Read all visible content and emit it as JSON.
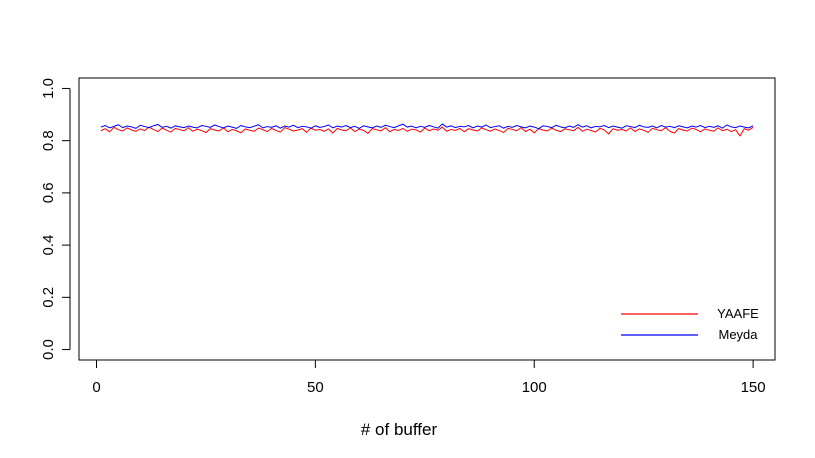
{
  "chart_data": {
    "type": "line",
    "title": "",
    "xlabel": "# of buffer",
    "ylabel": "",
    "xlim": [
      -4,
      155
    ],
    "ylim": [
      -0.04,
      1.04
    ],
    "x_ticks": [
      0,
      50,
      100,
      150
    ],
    "x_tick_labels": [
      "0",
      "50",
      "100",
      "150"
    ],
    "y_ticks": [
      0.0,
      0.2,
      0.4,
      0.6,
      0.8,
      1.0
    ],
    "y_tick_labels": [
      "0.0",
      "0.2",
      "0.4",
      "0.6",
      "0.8",
      "1.0"
    ],
    "grid": false,
    "legend_position": "bottom-right",
    "x": [
      1,
      2,
      3,
      4,
      5,
      6,
      7,
      8,
      9,
      10,
      11,
      12,
      13,
      14,
      15,
      16,
      17,
      18,
      19,
      20,
      21,
      22,
      23,
      24,
      25,
      26,
      27,
      28,
      29,
      30,
      31,
      32,
      33,
      34,
      35,
      36,
      37,
      38,
      39,
      40,
      41,
      42,
      43,
      44,
      45,
      46,
      47,
      48,
      49,
      50,
      51,
      52,
      53,
      54,
      55,
      56,
      57,
      58,
      59,
      60,
      61,
      62,
      63,
      64,
      65,
      66,
      67,
      68,
      69,
      70,
      71,
      72,
      73,
      74,
      75,
      76,
      77,
      78,
      79,
      80,
      81,
      82,
      83,
      84,
      85,
      86,
      87,
      88,
      89,
      90,
      91,
      92,
      93,
      94,
      95,
      96,
      97,
      98,
      99,
      100,
      101,
      102,
      103,
      104,
      105,
      106,
      107,
      108,
      109,
      110,
      111,
      112,
      113,
      114,
      115,
      116,
      117,
      118,
      119,
      120,
      121,
      122,
      123,
      124,
      125,
      126,
      127,
      128,
      129,
      130,
      131,
      132,
      133,
      134,
      135,
      136,
      137,
      138,
      139,
      140,
      141,
      142,
      143,
      144,
      145,
      146,
      147,
      148,
      149,
      150
    ],
    "series": [
      {
        "name": "YAAFE",
        "color": "#ff0000",
        "values": [
          0.838,
          0.846,
          0.834,
          0.851,
          0.842,
          0.837,
          0.849,
          0.841,
          0.836,
          0.845,
          0.839,
          0.852,
          0.843,
          0.835,
          0.848,
          0.84,
          0.833,
          0.847,
          0.842,
          0.838,
          0.85,
          0.836,
          0.844,
          0.839,
          0.831,
          0.846,
          0.841,
          0.837,
          0.849,
          0.834,
          0.843,
          0.838,
          0.83,
          0.845,
          0.84,
          0.836,
          0.848,
          0.842,
          0.835,
          0.847,
          0.839,
          0.833,
          0.85,
          0.844,
          0.837,
          0.841,
          0.846,
          0.832,
          0.848,
          0.84,
          0.843,
          0.836,
          0.845,
          0.829,
          0.847,
          0.841,
          0.838,
          0.849,
          0.835,
          0.844,
          0.84,
          0.828,
          0.846,
          0.842,
          0.837,
          0.85,
          0.834,
          0.843,
          0.839,
          0.847,
          0.836,
          0.844,
          0.841,
          0.833,
          0.848,
          0.838,
          0.845,
          0.84,
          0.852,
          0.836,
          0.843,
          0.839,
          0.847,
          0.834,
          0.846,
          0.841,
          0.837,
          0.849,
          0.842,
          0.836,
          0.845,
          0.839,
          0.831,
          0.847,
          0.843,
          0.838,
          0.85,
          0.835,
          0.844,
          0.83,
          0.846,
          0.841,
          0.837,
          0.848,
          0.84,
          0.835,
          0.845,
          0.842,
          0.838,
          0.851,
          0.836,
          0.844,
          0.839,
          0.833,
          0.847,
          0.841,
          0.826,
          0.846,
          0.84,
          0.843,
          0.837,
          0.849,
          0.835,
          0.845,
          0.84,
          0.832,
          0.847,
          0.842,
          0.838,
          0.85,
          0.836,
          0.829,
          0.846,
          0.841,
          0.837,
          0.848,
          0.843,
          0.834,
          0.845,
          0.84,
          0.836,
          0.849,
          0.838,
          0.844,
          0.835,
          0.842,
          0.818,
          0.846,
          0.84,
          0.851
        ]
      },
      {
        "name": "Meyda",
        "color": "#0000ff",
        "values": [
          0.852,
          0.858,
          0.849,
          0.855,
          0.861,
          0.85,
          0.856,
          0.853,
          0.847,
          0.859,
          0.854,
          0.85,
          0.857,
          0.862,
          0.851,
          0.855,
          0.848,
          0.857,
          0.853,
          0.85,
          0.856,
          0.852,
          0.849,
          0.858,
          0.855,
          0.851,
          0.86,
          0.854,
          0.849,
          0.856,
          0.852,
          0.847,
          0.858,
          0.853,
          0.85,
          0.855,
          0.861,
          0.849,
          0.854,
          0.851,
          0.857,
          0.848,
          0.856,
          0.852,
          0.859,
          0.85,
          0.855,
          0.853,
          0.848,
          0.857,
          0.851,
          0.854,
          0.86,
          0.849,
          0.856,
          0.852,
          0.858,
          0.85,
          0.855,
          0.847,
          0.857,
          0.853,
          0.849,
          0.856,
          0.851,
          0.859,
          0.854,
          0.85,
          0.857,
          0.863,
          0.852,
          0.856,
          0.849,
          0.855,
          0.851,
          0.858,
          0.853,
          0.848,
          0.864,
          0.852,
          0.857,
          0.85,
          0.855,
          0.853,
          0.858,
          0.849,
          0.856,
          0.852,
          0.86,
          0.85,
          0.854,
          0.857,
          0.848,
          0.855,
          0.851,
          0.858,
          0.853,
          0.849,
          0.856,
          0.852,
          0.846,
          0.857,
          0.854,
          0.85,
          0.859,
          0.853,
          0.849,
          0.856,
          0.851,
          0.861,
          0.852,
          0.857,
          0.849,
          0.855,
          0.853,
          0.858,
          0.85,
          0.856,
          0.852,
          0.848,
          0.857,
          0.854,
          0.85,
          0.859,
          0.853,
          0.851,
          0.856,
          0.849,
          0.858,
          0.852,
          0.855,
          0.85,
          0.857,
          0.853,
          0.849,
          0.856,
          0.852,
          0.858,
          0.85,
          0.855,
          0.851,
          0.857,
          0.848,
          0.86,
          0.853,
          0.85,
          0.856,
          0.852,
          0.849,
          0.857
        ]
      }
    ]
  }
}
